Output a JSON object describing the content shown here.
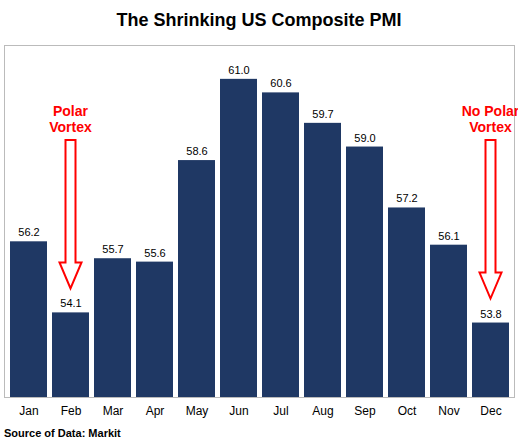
{
  "chart_data": {
    "type": "bar",
    "title": "The Shrinking US Composite PMI",
    "source": "Source of Data: Markit",
    "categories": [
      "Jan",
      "Feb",
      "Mar",
      "Apr",
      "May",
      "Jun",
      "Jul",
      "Aug",
      "Sep",
      "Oct",
      "Nov",
      "Dec"
    ],
    "values": [
      56.2,
      54.1,
      55.7,
      55.6,
      58.6,
      61.0,
      60.6,
      59.7,
      59.0,
      57.2,
      56.1,
      53.8
    ],
    "value_labels": [
      "56.2",
      "54.1",
      "55.7",
      "55.6",
      "58.6",
      "61.0",
      "60.6",
      "59.7",
      "59.0",
      "57.2",
      "56.1",
      "53.8"
    ],
    "color": "#1f3864",
    "ylim": [
      51.6,
      62
    ],
    "yticks": [],
    "grid": false,
    "data_labels": true,
    "tick_labels": "x",
    "annotations": [
      {
        "text": "Polar Vortex",
        "category": "Feb"
      },
      {
        "text": "No Polar Vortex",
        "category": "Dec"
      }
    ]
  }
}
